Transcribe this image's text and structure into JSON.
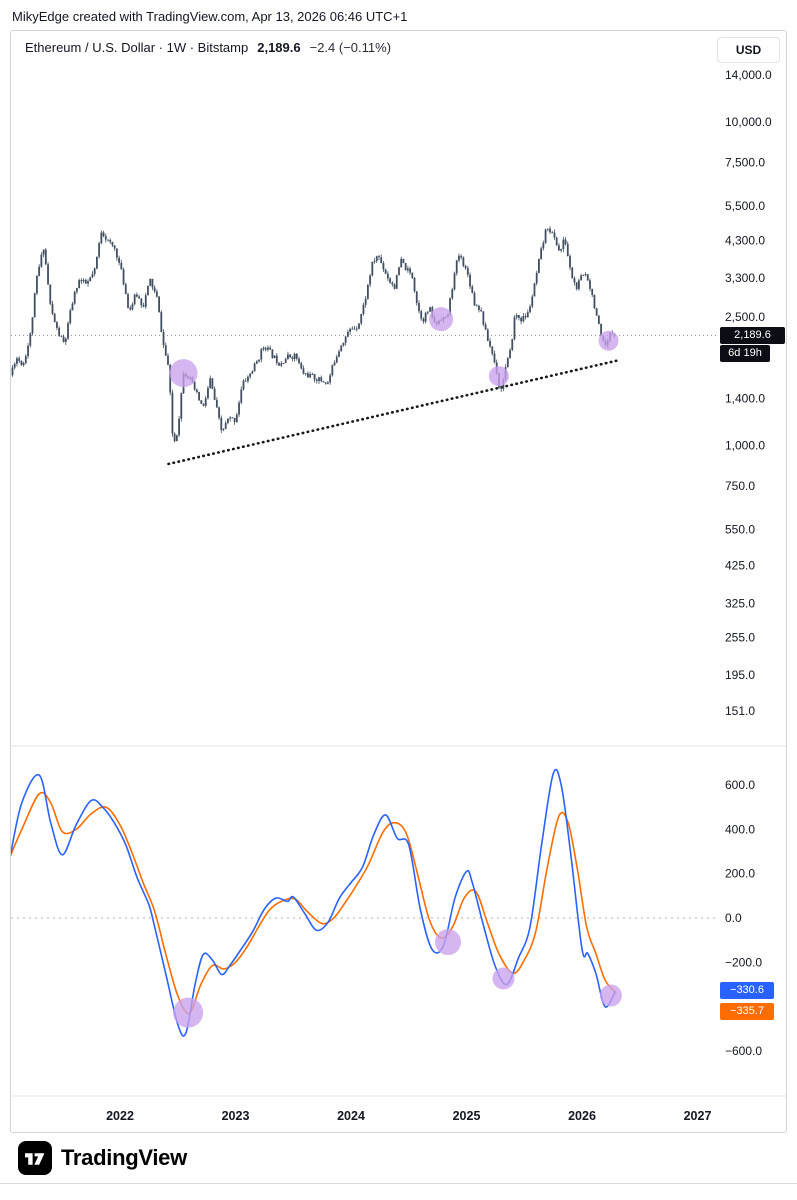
{
  "header": {
    "attribution": "MikyEdge created with TradingView.com, Apr 13, 2026 06:46 UTC+1"
  },
  "symbol": {
    "title": "Ethereum / U.S. Dollar · 1W · Bitstamp",
    "price": "2,189.6",
    "change": "−2.4 (−0.11%)",
    "currency": "USD"
  },
  "badges": {
    "price": "2,189.6",
    "countdown": "6d 19h",
    "fast": "−330.6",
    "signal": "−335.7"
  },
  "footer": {
    "brand": "TradingView"
  },
  "colors": {
    "fast_line": "#2962ff",
    "signal_line": "#ff6d00",
    "candle": "#414e61",
    "marker": "#c9a2ec",
    "trendline": "#16181d",
    "axis_text": "#131722",
    "grid_separator": "#e0e3eb",
    "price_line": "#9598a1",
    "zero_line": "#b2b5be",
    "badge_black": "#0c0e15"
  },
  "chart_data": [
    {
      "type": "candlestick",
      "name": "ETHUSD weekly",
      "title": "Ethereum / U.S. Dollar, 1W, Bitstamp",
      "y_scale": "log",
      "x_range": [
        2021.05,
        2026.29
      ],
      "last_price": 2189.6,
      "x_ticks": [
        {
          "v": 2022,
          "label": "2022"
        },
        {
          "v": 2023,
          "label": "2023"
        },
        {
          "v": 2024,
          "label": "2024"
        },
        {
          "v": 2025,
          "label": "2025"
        },
        {
          "v": 2026,
          "label": "2026"
        },
        {
          "v": 2027,
          "label": "2027"
        }
      ],
      "y_ticks": [
        {
          "v": 14000,
          "label": "14,000.0"
        },
        {
          "v": 10000,
          "label": "10,000.0"
        },
        {
          "v": 7500,
          "label": "7,500.0"
        },
        {
          "v": 5500,
          "label": "5,500.0"
        },
        {
          "v": 4300,
          "label": "4,300.0"
        },
        {
          "v": 3300,
          "label": "3,300.0"
        },
        {
          "v": 2500,
          "label": "2,500.0"
        },
        {
          "v": 1400,
          "label": "1,400.0"
        },
        {
          "v": 1000,
          "label": "1,000.0"
        },
        {
          "v": 750,
          "label": "750.0"
        },
        {
          "v": 550,
          "label": "550.0"
        },
        {
          "v": 425,
          "label": "425.0"
        },
        {
          "v": 325,
          "label": "325.0"
        },
        {
          "v": 255,
          "label": "255.0"
        },
        {
          "v": 195,
          "label": "195.0"
        },
        {
          "v": 151,
          "label": "151.0"
        }
      ],
      "anchors": [
        [
          2021.05,
          1650
        ],
        [
          2021.1,
          1880
        ],
        [
          2021.16,
          1780
        ],
        [
          2021.22,
          2150
        ],
        [
          2021.28,
          3300
        ],
        [
          2021.34,
          4150
        ],
        [
          2021.4,
          2650
        ],
        [
          2021.46,
          2250
        ],
        [
          2021.52,
          2050
        ],
        [
          2021.58,
          2700
        ],
        [
          2021.64,
          3250
        ],
        [
          2021.71,
          3150
        ],
        [
          2021.78,
          3450
        ],
        [
          2021.84,
          4650
        ],
        [
          2021.9,
          4250
        ],
        [
          2021.96,
          4050
        ],
        [
          2022.02,
          3350
        ],
        [
          2022.08,
          2600
        ],
        [
          2022.14,
          2950
        ],
        [
          2022.2,
          2700
        ],
        [
          2022.26,
          3250
        ],
        [
          2022.32,
          2850
        ],
        [
          2022.38,
          2000
        ],
        [
          2022.42,
          1750
        ],
        [
          2022.46,
          1000
        ],
        [
          2022.5,
          1120
        ],
        [
          2022.55,
          1700
        ],
        [
          2022.6,
          1620
        ],
        [
          2022.66,
          1450
        ],
        [
          2022.72,
          1300
        ],
        [
          2022.78,
          1600
        ],
        [
          2022.84,
          1280
        ],
        [
          2022.88,
          1100
        ],
        [
          2022.94,
          1210
        ],
        [
          2023.0,
          1200
        ],
        [
          2023.06,
          1550
        ],
        [
          2023.12,
          1650
        ],
        [
          2023.18,
          1800
        ],
        [
          2023.25,
          2050
        ],
        [
          2023.32,
          1900
        ],
        [
          2023.38,
          1800
        ],
        [
          2023.45,
          1880
        ],
        [
          2023.52,
          1900
        ],
        [
          2023.58,
          1680
        ],
        [
          2023.65,
          1640
        ],
        [
          2023.72,
          1600
        ],
        [
          2023.8,
          1560
        ],
        [
          2023.86,
          1850
        ],
        [
          2023.92,
          2080
        ],
        [
          2024.0,
          2300
        ],
        [
          2024.06,
          2350
        ],
        [
          2024.12,
          2800
        ],
        [
          2024.18,
          3600
        ],
        [
          2024.23,
          3900
        ],
        [
          2024.28,
          3550
        ],
        [
          2024.33,
          3250
        ],
        [
          2024.38,
          3100
        ],
        [
          2024.43,
          3750
        ],
        [
          2024.48,
          3500
        ],
        [
          2024.53,
          3350
        ],
        [
          2024.58,
          2650
        ],
        [
          2024.62,
          2450
        ],
        [
          2024.68,
          2650
        ],
        [
          2024.73,
          2350
        ],
        [
          2024.78,
          2500
        ],
        [
          2024.83,
          2450
        ],
        [
          2024.88,
          3150
        ],
        [
          2024.93,
          3900
        ],
        [
          2024.97,
          3700
        ],
        [
          2025.02,
          3300
        ],
        [
          2025.07,
          2750
        ],
        [
          2025.12,
          2650
        ],
        [
          2025.17,
          2200
        ],
        [
          2025.22,
          1950
        ],
        [
          2025.27,
          1650
        ],
        [
          2025.29,
          1430
        ],
        [
          2025.33,
          1700
        ],
        [
          2025.38,
          1950
        ],
        [
          2025.42,
          2550
        ],
        [
          2025.48,
          2450
        ],
        [
          2025.53,
          2550
        ],
        [
          2025.58,
          3000
        ],
        [
          2025.63,
          3750
        ],
        [
          2025.67,
          4350
        ],
        [
          2025.7,
          4800
        ],
        [
          2025.73,
          4600
        ],
        [
          2025.77,
          4300
        ],
        [
          2025.81,
          3950
        ],
        [
          2025.85,
          4400
        ],
        [
          2025.9,
          3450
        ],
        [
          2025.95,
          3050
        ],
        [
          2026.0,
          3350
        ],
        [
          2026.04,
          3400
        ],
        [
          2026.08,
          3000
        ],
        [
          2026.13,
          2500
        ],
        [
          2026.17,
          2100
        ],
        [
          2026.21,
          2000
        ],
        [
          2026.25,
          2250
        ],
        [
          2026.29,
          2189.6
        ]
      ],
      "trendline": {
        "style": "dotted",
        "from": [
          2022.42,
          877
        ],
        "to": [
          2026.3,
          1830
        ]
      },
      "markers": [
        {
          "x": 2022.55,
          "y": 1675,
          "r": 14
        },
        {
          "x": 2024.78,
          "y": 2460,
          "r": 12
        },
        {
          "x": 2025.28,
          "y": 1640,
          "r": 10
        },
        {
          "x": 2026.23,
          "y": 2110,
          "r": 10
        }
      ]
    },
    {
      "type": "line",
      "name": "oscillator",
      "y_ticks": [
        {
          "v": 600,
          "label": "600.0"
        },
        {
          "v": 400,
          "label": "400.0"
        },
        {
          "v": 200,
          "label": "200.0"
        },
        {
          "v": 0,
          "label": "0.0"
        },
        {
          "v": -200,
          "label": "−200.0"
        },
        {
          "v": -600,
          "label": "−600.0"
        }
      ],
      "zero_line": 0,
      "series": [
        {
          "name": "fast",
          "color": "#2962ff",
          "last": -330.6,
          "points": [
            [
              2021.05,
              280
            ],
            [
              2021.15,
              520
            ],
            [
              2021.3,
              645
            ],
            [
              2021.4,
              430
            ],
            [
              2021.5,
              285
            ],
            [
              2021.62,
              420
            ],
            [
              2021.75,
              530
            ],
            [
              2021.85,
              500
            ],
            [
              2021.95,
              430
            ],
            [
              2022.05,
              330
            ],
            [
              2022.15,
              180
            ],
            [
              2022.25,
              60
            ],
            [
              2022.3,
              -40
            ],
            [
              2022.4,
              -260
            ],
            [
              2022.5,
              -480
            ],
            [
              2022.57,
              -520
            ],
            [
              2022.65,
              -300
            ],
            [
              2022.72,
              -165
            ],
            [
              2022.8,
              -190
            ],
            [
              2022.88,
              -255
            ],
            [
              2022.95,
              -215
            ],
            [
              2023.05,
              -140
            ],
            [
              2023.15,
              -60
            ],
            [
              2023.25,
              40
            ],
            [
              2023.35,
              90
            ],
            [
              2023.45,
              75
            ],
            [
              2023.5,
              95
            ],
            [
              2023.6,
              20
            ],
            [
              2023.7,
              -55
            ],
            [
              2023.8,
              -20
            ],
            [
              2023.9,
              90
            ],
            [
              2024.0,
              160
            ],
            [
              2024.1,
              230
            ],
            [
              2024.2,
              380
            ],
            [
              2024.3,
              465
            ],
            [
              2024.4,
              360
            ],
            [
              2024.5,
              330
            ],
            [
              2024.6,
              40
            ],
            [
              2024.7,
              -140
            ],
            [
              2024.8,
              -125
            ],
            [
              2024.9,
              90
            ],
            [
              2025.0,
              210
            ],
            [
              2025.05,
              160
            ],
            [
              2025.15,
              -40
            ],
            [
              2025.25,
              -220
            ],
            [
              2025.35,
              -300
            ],
            [
              2025.45,
              -180
            ],
            [
              2025.55,
              -40
            ],
            [
              2025.65,
              330
            ],
            [
              2025.75,
              650
            ],
            [
              2025.82,
              600
            ],
            [
              2025.9,
              300
            ],
            [
              2026.0,
              -140
            ],
            [
              2026.05,
              -160
            ],
            [
              2026.12,
              -250
            ],
            [
              2026.2,
              -400
            ],
            [
              2026.29,
              -330.6
            ]
          ]
        },
        {
          "name": "signal",
          "color": "#ff6d00",
          "last": -335.7,
          "points": [
            [
              2021.05,
              280
            ],
            [
              2021.15,
              400
            ],
            [
              2021.3,
              560
            ],
            [
              2021.4,
              520
            ],
            [
              2021.5,
              390
            ],
            [
              2021.62,
              400
            ],
            [
              2021.75,
              470
            ],
            [
              2021.88,
              500
            ],
            [
              2022.0,
              420
            ],
            [
              2022.1,
              300
            ],
            [
              2022.2,
              160
            ],
            [
              2022.3,
              30
            ],
            [
              2022.4,
              -170
            ],
            [
              2022.5,
              -350
            ],
            [
              2022.6,
              -430
            ],
            [
              2022.7,
              -300
            ],
            [
              2022.8,
              -215
            ],
            [
              2022.9,
              -230
            ],
            [
              2023.0,
              -200
            ],
            [
              2023.1,
              -130
            ],
            [
              2023.2,
              -40
            ],
            [
              2023.3,
              40
            ],
            [
              2023.42,
              80
            ],
            [
              2023.52,
              85
            ],
            [
              2023.62,
              30
            ],
            [
              2023.75,
              -25
            ],
            [
              2023.85,
              0
            ],
            [
              2023.95,
              70
            ],
            [
              2024.05,
              150
            ],
            [
              2024.15,
              240
            ],
            [
              2024.28,
              390
            ],
            [
              2024.38,
              430
            ],
            [
              2024.48,
              380
            ],
            [
              2024.58,
              190
            ],
            [
              2024.68,
              -10
            ],
            [
              2024.78,
              -90
            ],
            [
              2024.88,
              -40
            ],
            [
              2024.98,
              90
            ],
            [
              2025.08,
              120
            ],
            [
              2025.18,
              -20
            ],
            [
              2025.28,
              -160
            ],
            [
              2025.4,
              -250
            ],
            [
              2025.5,
              -190
            ],
            [
              2025.6,
              -60
            ],
            [
              2025.7,
              230
            ],
            [
              2025.8,
              460
            ],
            [
              2025.88,
              430
            ],
            [
              2025.96,
              220
            ],
            [
              2026.04,
              -40
            ],
            [
              2026.12,
              -160
            ],
            [
              2026.2,
              -280
            ],
            [
              2026.29,
              -335.7
            ]
          ]
        }
      ],
      "markers": [
        {
          "x": 2022.59,
          "y": -427,
          "r": 15
        },
        {
          "x": 2024.84,
          "y": -109,
          "r": 13
        },
        {
          "x": 2025.32,
          "y": -273,
          "r": 11
        },
        {
          "x": 2026.25,
          "y": -350,
          "r": 11
        }
      ]
    }
  ]
}
